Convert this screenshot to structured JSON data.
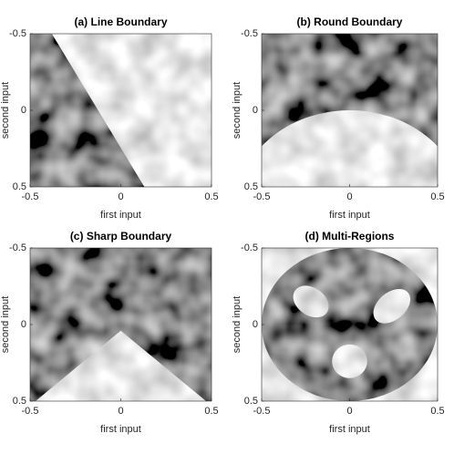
{
  "chart_data": [
    {
      "type": "image",
      "title": "(a) Line Boundary",
      "xlabel": "first input",
      "ylabel": "second input",
      "xlim": [
        -0.5,
        0.5
      ],
      "ylim": [
        0.5,
        -0.5
      ],
      "xticks": [
        -0.5,
        0,
        0.5
      ],
      "yticks": [
        -0.5,
        0,
        0.5
      ]
    },
    {
      "type": "image",
      "title": "(b) Round Boundary",
      "xlabel": "first input",
      "ylabel": "second input",
      "xlim": [
        -0.5,
        0.5
      ],
      "ylim": [
        0.5,
        -0.5
      ],
      "xticks": [
        -0.5,
        0,
        0.5
      ],
      "yticks": [
        -0.5,
        0,
        0.5
      ]
    },
    {
      "type": "image",
      "title": "(c) Sharp Boundary",
      "xlabel": "first input",
      "ylabel": "second input",
      "xlim": [
        -0.5,
        0.5
      ],
      "ylim": [
        0.5,
        -0.5
      ],
      "xticks": [
        -0.5,
        0,
        0.5
      ],
      "yticks": [
        -0.5,
        0,
        0.5
      ]
    },
    {
      "type": "image",
      "title": "(d) Multi-Regions",
      "xlabel": "first input",
      "ylabel": "second input",
      "xlim": [
        -0.5,
        0.5
      ],
      "ylim": [
        0.5,
        -0.5
      ],
      "xticks": [
        -0.5,
        0,
        0.5
      ],
      "yticks": [
        -0.5,
        0,
        0.5
      ]
    }
  ]
}
